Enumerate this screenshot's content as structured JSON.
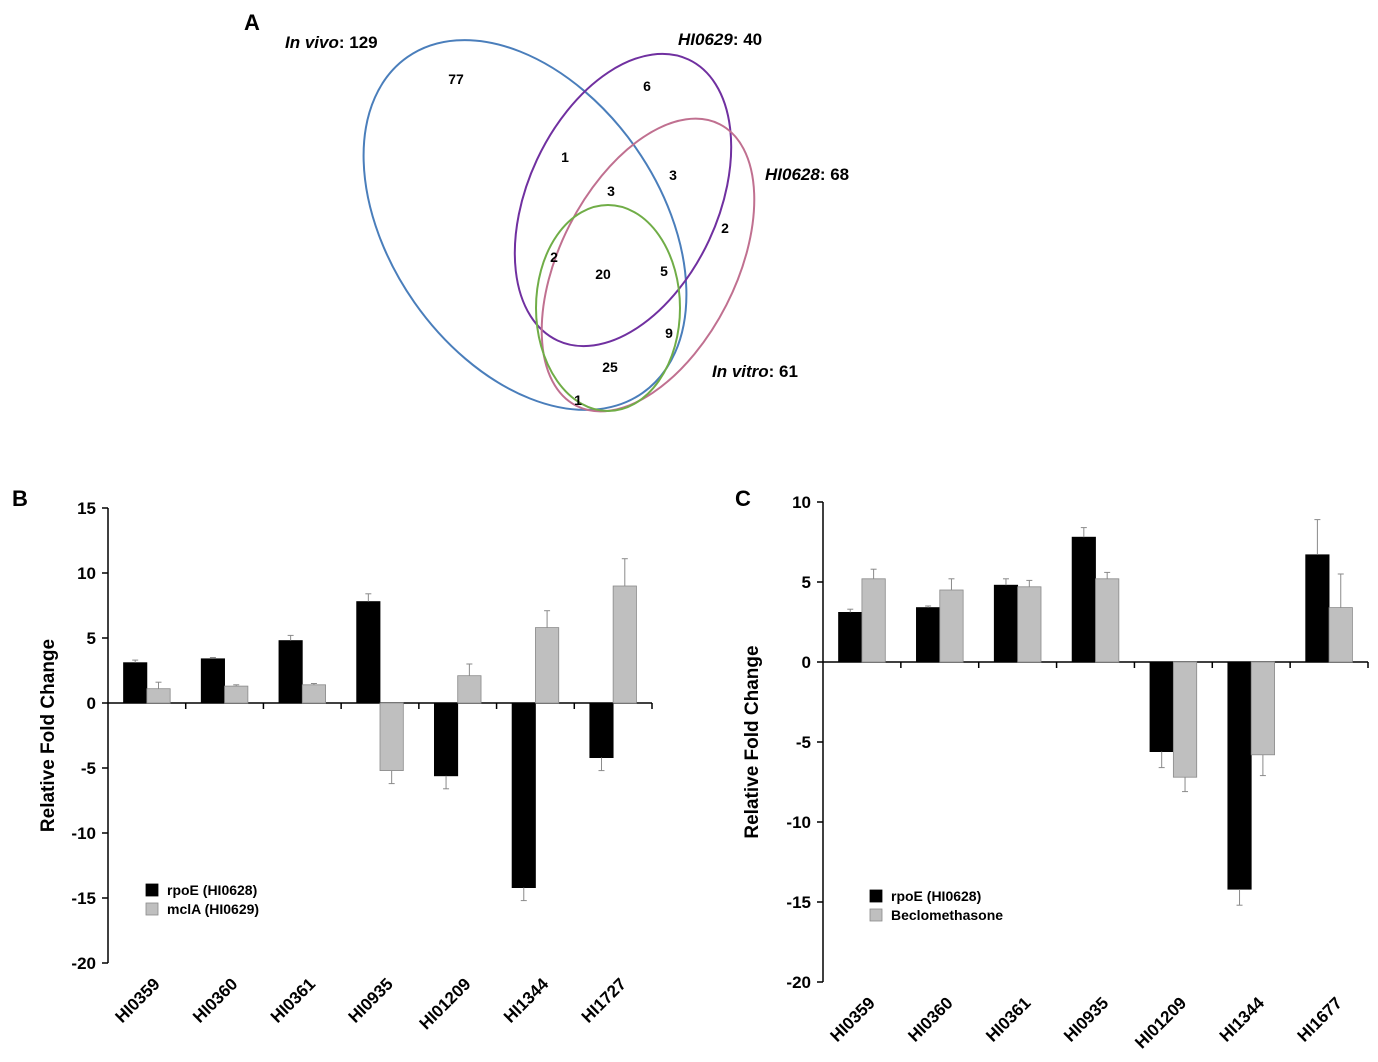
{
  "panel_labels": {
    "a": "A",
    "b": "B",
    "c": "C"
  },
  "venn": {
    "sets": [
      {
        "label_italic": "In vivo",
        "label_rest": ": 129",
        "color": "#4a7ebb"
      },
      {
        "label_italic": "HI0629",
        "label_rest": ": 40",
        "color": "#7030a0"
      },
      {
        "label_italic": "HI0628",
        "label_rest": ": 68",
        "color": "#c07090"
      },
      {
        "label_italic": "In vitro",
        "label_rest": ": 61",
        "color": "#70ad47"
      }
    ],
    "regions": [
      "77",
      "6",
      "1",
      "3",
      "3",
      "2",
      "2",
      "20",
      "5",
      "9",
      "25",
      "1"
    ]
  },
  "chart_data": [
    {
      "type": "bar",
      "panel": "B",
      "categories": [
        "HI0359",
        "HI0360",
        "HI0361",
        "HI0935",
        "HI01209",
        "HI1344",
        "HI1727"
      ],
      "series": [
        {
          "name": "rpoE (HI0628)",
          "color": "#000000",
          "values": [
            3.1,
            3.4,
            4.8,
            7.8,
            -5.6,
            -14.2,
            -4.2
          ],
          "errors": [
            0.2,
            0.1,
            0.4,
            0.6,
            1.0,
            1.0,
            1.0
          ]
        },
        {
          "name": "mclA (HI0629)",
          "color": "#bfbfbf",
          "values": [
            1.1,
            1.3,
            1.4,
            -5.2,
            2.1,
            5.8,
            9.0
          ],
          "errors": [
            0.5,
            0.1,
            0.1,
            1.0,
            0.9,
            1.3,
            2.1
          ]
        }
      ],
      "ylabel": "Relative Fold Change",
      "ylim": [
        -20,
        15
      ],
      "yticks": [
        "15",
        "10",
        "5",
        "0",
        "-5",
        "-10",
        "-15",
        "-20"
      ],
      "legend": "bottom-left"
    },
    {
      "type": "bar",
      "panel": "C",
      "categories": [
        "HI0359",
        "HI0360",
        "HI0361",
        "HI0935",
        "HI01209",
        "HI1344",
        "HI1677"
      ],
      "series": [
        {
          "name": "rpoE (HI0628)",
          "color": "#000000",
          "values": [
            3.1,
            3.4,
            4.8,
            7.8,
            -5.6,
            -14.2,
            6.7
          ],
          "errors": [
            0.2,
            0.1,
            0.4,
            0.6,
            1.0,
            1.0,
            2.2
          ]
        },
        {
          "name": "Beclomethasone",
          "color": "#bfbfbf",
          "values": [
            5.2,
            4.5,
            4.7,
            5.2,
            -7.2,
            -5.8,
            3.4
          ],
          "errors": [
            0.6,
            0.7,
            0.4,
            0.4,
            0.9,
            1.3,
            2.1
          ]
        }
      ],
      "ylabel": "Relative Fold Change",
      "ylim": [
        -20,
        10
      ],
      "yticks": [
        "10",
        "5",
        "0",
        "-5",
        "-10",
        "-15",
        "-20"
      ],
      "legend": "bottom-left"
    }
  ]
}
